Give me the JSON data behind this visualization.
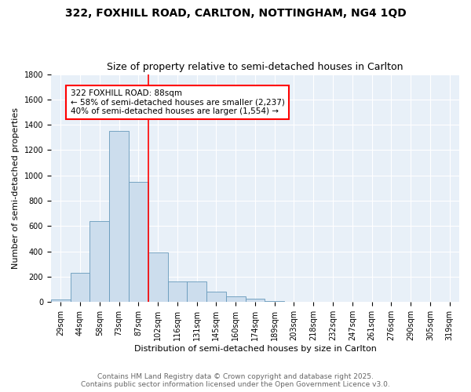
{
  "title": "322, FOXHILL ROAD, CARLTON, NOTTINGHAM, NG4 1QD",
  "subtitle": "Size of property relative to semi-detached houses in Carlton",
  "xlabel": "Distribution of semi-detached houses by size in Carlton",
  "ylabel": "Number of semi-detached properties",
  "footer_line1": "Contains HM Land Registry data © Crown copyright and database right 2025.",
  "footer_line2": "Contains public sector information licensed under the Open Government Licence v3.0.",
  "bin_labels": [
    "29sqm",
    "44sqm",
    "58sqm",
    "73sqm",
    "87sqm",
    "102sqm",
    "116sqm",
    "131sqm",
    "145sqm",
    "160sqm",
    "174sqm",
    "189sqm",
    "203sqm",
    "218sqm",
    "232sqm",
    "247sqm",
    "261sqm",
    "276sqm",
    "290sqm",
    "305sqm",
    "319sqm"
  ],
  "bar_values": [
    22,
    230,
    640,
    1350,
    950,
    390,
    165,
    165,
    85,
    45,
    25,
    10,
    5,
    2,
    1,
    1,
    0,
    0,
    0,
    0,
    0
  ],
  "bar_color": "#ccdded",
  "bar_edge_color": "#6699bb",
  "vline_x": 4.5,
  "vline_color": "red",
  "annotation_text": "322 FOXHILL ROAD: 88sqm\n← 58% of semi-detached houses are smaller (2,237)\n40% of semi-detached houses are larger (1,554) →",
  "annotation_box_color": "white",
  "annotation_box_edge": "red",
  "ylim": [
    0,
    1800
  ],
  "yticks": [
    0,
    200,
    400,
    600,
    800,
    1000,
    1200,
    1400,
    1600,
    1800
  ],
  "bg_color": "#e8f0f8",
  "grid_color": "white",
  "title_fontsize": 10,
  "subtitle_fontsize": 9,
  "axis_label_fontsize": 8,
  "tick_fontsize": 7,
  "annotation_fontsize": 7.5,
  "footer_fontsize": 6.5
}
